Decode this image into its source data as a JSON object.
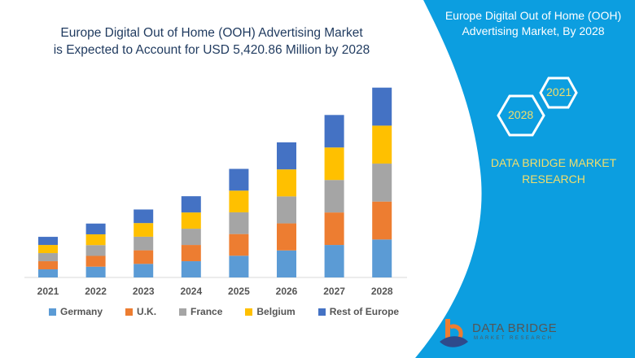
{
  "chart_data": {
    "type": "bar",
    "stacked": true,
    "title": "Europe Digital Out of Home (OOH) Advertising Market is Expected to Account for USD 5,420.86 Million by 2028",
    "categories": [
      "2021",
      "2022",
      "2023",
      "2024",
      "2025",
      "2026",
      "2027",
      "2028"
    ],
    "series": [
      {
        "name": "Germany",
        "color": "#5b9bd5",
        "values": [
          232,
          308,
          388,
          464,
          620,
          772,
          928,
          1084
        ]
      },
      {
        "name": "U.K.",
        "color": "#ed7d31",
        "values": [
          232,
          308,
          388,
          464,
          620,
          772,
          928,
          1084
        ]
      },
      {
        "name": "France",
        "color": "#a5a5a5",
        "values": [
          232,
          308,
          388,
          464,
          620,
          771,
          928,
          1084
        ]
      },
      {
        "name": "Belgium",
        "color": "#ffc000",
        "values": [
          232,
          308,
          389,
          464,
          620,
          771,
          928,
          1084
        ]
      },
      {
        "name": "Rest of Europe",
        "color": "#4472c4",
        "values": [
          232,
          307,
          388,
          464,
          621,
          772,
          928,
          1085
        ]
      }
    ],
    "ylim": [
      0,
      5600
    ],
    "grid": false,
    "legend": "bottom",
    "xlabel": "",
    "ylabel": ""
  },
  "title_line1": "Europe Digital Out of Home (OOH) Advertising Market",
  "title_line2": "is Expected to Account for USD 5,420.86 Million by 2028",
  "side_panel": {
    "title_line1": "Europe Digital Out of Home (OOH)",
    "title_line2": "Advertising Market, By 2028",
    "hex_start": "2021",
    "hex_end": "2028",
    "brand_line1": "DATA BRIDGE MARKET",
    "brand_line2": "RESEARCH",
    "logo_text": "DATA BRIDGE",
    "logo_sub": "MARKET RESEARCH",
    "panel_color": "#0c9ee0",
    "accent_color": "#f2de6b"
  }
}
